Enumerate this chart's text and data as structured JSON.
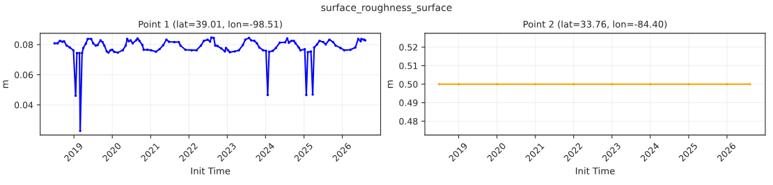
{
  "chart_data": [
    {
      "type": "line",
      "title": "Point 1 (lat=39.01, lon=-98.51)",
      "xlabel": "Init Time",
      "ylabel": "m",
      "annotations": [
        "surface_roughness_surface"
      ],
      "x": [
        "2018-06-30",
        "2018-07-28",
        "2018-08-20",
        "2018-09-13",
        "2018-09-29",
        "2018-10-23",
        "2018-11-22",
        "2018-12-27",
        "2019-01-17",
        "2019-01-29",
        "2019-02-22",
        "2019-03-01",
        "2019-03-19",
        "2019-03-31",
        "2019-04-24",
        "2019-05-12",
        "2019-06-14",
        "2019-07-03",
        "2019-07-27",
        "2019-08-14",
        "2019-09-11",
        "2019-09-30",
        "2019-10-17",
        "2019-11-09",
        "2019-11-26",
        "2019-12-14",
        "2019-12-31",
        "2020-01-19",
        "2020-02-23",
        "2020-04-10",
        "2020-05-08",
        "2020-05-22",
        "2020-06-07",
        "2020-06-24",
        "2020-07-13",
        "2020-08-17",
        "2020-08-29",
        "2020-09-16",
        "2020-10-14",
        "2020-10-26",
        "2020-11-30",
        "2021-01-04",
        "2021-02-20",
        "2021-03-27",
        "2021-05-01",
        "2021-05-31",
        "2021-06-24",
        "2021-08-15",
        "2021-09-26",
        "2021-10-12",
        "2021-11-28",
        "2022-01-26",
        "2022-03-14",
        "2022-04-25",
        "2022-05-23",
        "2022-06-27",
        "2022-07-21",
        "2022-08-02",
        "2022-08-25",
        "2022-09-08",
        "2022-09-29",
        "2022-11-04",
        "2022-12-09",
        "2022-12-20",
        "2023-01-08",
        "2023-01-25",
        "2023-03-13",
        "2023-04-22",
        "2023-05-29",
        "2023-06-22",
        "2023-07-27",
        "2023-08-17",
        "2023-09-16",
        "2023-10-10",
        "2023-11-02",
        "2023-12-08",
        "2024-01-05",
        "2024-01-21",
        "2024-02-04",
        "2024-03-10",
        "2024-04-08",
        "2024-05-15",
        "2024-07-06",
        "2024-07-25",
        "2024-08-10",
        "2024-09-02",
        "2024-09-26",
        "2024-10-12",
        "2024-11-12",
        "2024-11-28",
        "2025-01-08",
        "2025-01-23",
        "2025-02-06",
        "2025-03-08",
        "2025-03-25",
        "2025-04-08",
        "2025-05-06",
        "2025-05-29",
        "2025-07-04",
        "2025-07-27",
        "2025-08-31",
        "2025-10-05",
        "2025-10-29",
        "2025-12-15",
        "2026-01-19",
        "2026-03-19",
        "2026-05-05",
        "2026-06-02",
        "2026-06-25",
        "2026-07-02",
        "2026-07-26",
        "2026-08-07"
      ],
      "series": [
        {
          "color": "#0000ff",
          "values": [
            0.0809,
            0.0809,
            0.0825,
            0.0819,
            0.0822,
            0.0794,
            0.0781,
            0.0762,
            0.0461,
            0.0744,
            0.0744,
            0.0228,
            0.0744,
            0.0778,
            0.0806,
            0.0838,
            0.0838,
            0.0809,
            0.0794,
            0.0797,
            0.0828,
            0.0817,
            0.0794,
            0.0755,
            0.0747,
            0.0763,
            0.0766,
            0.0752,
            0.0747,
            0.0763,
            0.0794,
            0.0838,
            0.0822,
            0.0828,
            0.0809,
            0.083,
            0.0841,
            0.0825,
            0.0797,
            0.0766,
            0.0766,
            0.0763,
            0.0753,
            0.077,
            0.0797,
            0.0833,
            0.0819,
            0.0817,
            0.0817,
            0.0794,
            0.0766,
            0.0763,
            0.0763,
            0.0794,
            0.0825,
            0.0833,
            0.082,
            0.0847,
            0.0845,
            0.0794,
            0.0791,
            0.0775,
            0.0755,
            0.0778,
            0.0763,
            0.075,
            0.0755,
            0.0763,
            0.0797,
            0.0833,
            0.0844,
            0.0828,
            0.0825,
            0.0809,
            0.0781,
            0.0763,
            0.0759,
            0.0466,
            0.0752,
            0.0759,
            0.0778,
            0.0813,
            0.0816,
            0.0841,
            0.0813,
            0.0825,
            0.0825,
            0.0809,
            0.0781,
            0.0763,
            0.077,
            0.0466,
            0.075,
            0.0755,
            0.0469,
            0.0781,
            0.0802,
            0.0825,
            0.0817,
            0.0802,
            0.0833,
            0.0817,
            0.0794,
            0.0778,
            0.0763,
            0.0766,
            0.0781,
            0.0838,
            0.0822,
            0.0838,
            0.0833,
            0.0828
          ]
        }
      ],
      "xlim": [
        "2018-02-13",
        "2027-01-01"
      ],
      "xticks": [
        "2019",
        "2020",
        "2021",
        "2022",
        "2023",
        "2024",
        "2025",
        "2026"
      ],
      "ylim": [
        0.02,
        0.0875
      ],
      "yticks": [
        0.04,
        0.06,
        0.08
      ],
      "grid": true,
      "marker": "circle",
      "line_style": "solid"
    },
    {
      "type": "line",
      "title": "Point 2 (lat=33.76, lon=-84.40)",
      "xlabel": "Init Time",
      "ylabel": "m",
      "x": [
        "2018-06-30",
        "2019-01-01",
        "2020-01-01",
        "2021-01-01",
        "2022-01-01",
        "2023-01-01",
        "2024-01-01",
        "2025-01-01",
        "2026-01-01",
        "2026-08-07"
      ],
      "series": [
        {
          "color": "#ffa500",
          "values": [
            0.5,
            0.5,
            0.5,
            0.5,
            0.5,
            0.5,
            0.5,
            0.5,
            0.5,
            0.5
          ]
        }
      ],
      "xlim": [
        "2018-02-13",
        "2027-01-01"
      ],
      "xticks": [
        "2019",
        "2020",
        "2021",
        "2022",
        "2023",
        "2024",
        "2025",
        "2026"
      ],
      "ylim": [
        0.4725,
        0.5275
      ],
      "yticks": [
        0.48,
        0.49,
        {
          "value": 0.5,
          "label": "0.50"
        },
        0.51,
        0.52
      ],
      "grid": true,
      "marker": "circle",
      "line_style": "solid"
    }
  ]
}
